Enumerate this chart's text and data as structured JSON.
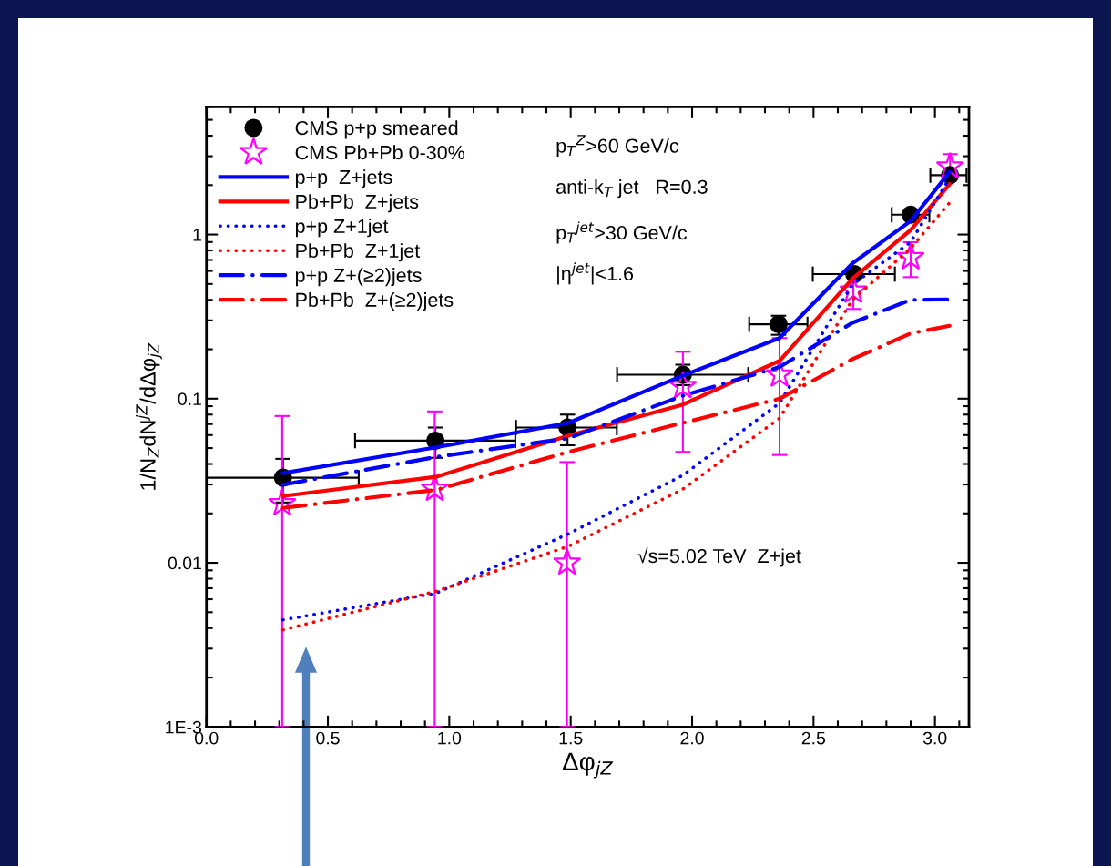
{
  "chart_data": {
    "type": "line",
    "xlabel": "Δφ$_{jZ}$",
    "ylabel": "1/N$_{Z}$dN$^{jZ}$/dΔφ$_{jZ}$",
    "log": "y",
    "xlim": [
      0,
      3.14
    ],
    "ylim": [
      0.001,
      6
    ],
    "xticks": [
      {
        "value": 0,
        "label": "0.0"
      },
      {
        "value": 0.5,
        "label": "0.5"
      },
      {
        "value": 1,
        "label": "1.0"
      },
      {
        "value": 1.5,
        "label": "1.5"
      },
      {
        "value": 2,
        "label": "2.0"
      },
      {
        "value": 2.5,
        "label": "2.5"
      },
      {
        "value": 3,
        "label": "3.0"
      }
    ],
    "yticks": [
      {
        "value": 0.001,
        "label": "1E-3"
      },
      0.01,
      0.1,
      1
    ],
    "grid": false,
    "legend": "top left",
    "annotations": [
      "p$_{T}$$^{Z}$>60 GeV/c",
      "anti-k$_{T}$ jet   R=0.3",
      "p$_{T}$$^{jet}$>30 GeV/c",
      "|η$^{jet}$|<1.6",
      "√s=5.02 TeV  Z+jet"
    ],
    "series": [
      {
        "name": "CMS p+p smeared",
        "type": "scatter",
        "marker": "circle",
        "color": "#000000",
        "x": [
          0.315,
          0.943,
          1.487,
          1.962,
          2.356,
          2.668,
          2.9,
          3.062
        ],
        "values": [
          0.033,
          0.0555,
          0.0667,
          0.14,
          0.284,
          0.574,
          1.32,
          2.3
        ],
        "errors": [
          [
            0.0233,
            0.043
          ],
          [
            0.0436,
            0.0667
          ],
          [
            0.052,
            0.08
          ],
          [
            0.121,
            0.161
          ],
          [
            0.245,
            0.32
          ],
          null,
          null,
          null
        ],
        "xerrors": [
          [
            0,
            0.627
          ],
          [
            0.612,
            1.272
          ],
          [
            1.275,
            1.69
          ],
          [
            1.691,
            2.231
          ],
          [
            2.235,
            2.475
          ],
          [
            2.497,
            2.835
          ],
          [
            2.822,
            2.977
          ],
          [
            2.981,
            3.13
          ]
        ]
      },
      {
        "name": "CMS Pb+Pb 0-30%",
        "type": "scatter",
        "marker": "star",
        "color": "#ff00ff",
        "x": [
          0.312,
          0.94,
          1.485,
          1.962,
          2.36,
          2.664,
          2.9,
          3.062
        ],
        "values": [
          0.023,
          0.0282,
          0.01,
          0.119,
          0.14,
          0.454,
          0.726,
          2.59
        ],
        "errors": [
          [
            0.001,
            0.0784
          ],
          [
            0.001,
            0.0836
          ],
          [
            0.001,
            0.0411
          ],
          [
            0.0474,
            0.193
          ],
          [
            0.0454,
            0.234
          ],
          [
            0.352,
            0.574
          ],
          [
            0.55,
            0.898
          ],
          [
            2.16,
            3.09
          ]
        ]
      },
      {
        "name": "p+p  Z+jets",
        "line_style": "solid",
        "color": "#0000ff",
        "x": [
          0.315,
          0.945,
          1.49,
          1.96,
          2.36,
          2.66,
          2.9,
          3.06
        ],
        "values": [
          0.0352,
          0.0505,
          0.0711,
          0.138,
          0.234,
          0.667,
          1.21,
          2.4
        ]
      },
      {
        "name": "Pb+Pb  Z+jets",
        "line_style": "solid",
        "color": "#ff0000",
        "x": [
          0.315,
          0.945,
          1.49,
          1.96,
          2.36,
          2.66,
          2.9,
          3.06
        ],
        "values": [
          0.0255,
          0.0334,
          0.0594,
          0.0918,
          0.17,
          0.538,
          1.066,
          2.02
        ]
      },
      {
        "name": "p+p Z+1jet",
        "line_style": "dotted",
        "color": "#0000ff",
        "x": [
          0.315,
          0.945,
          1.49,
          1.96,
          2.36,
          2.66,
          2.9,
          3.06
        ],
        "values": [
          0.00449,
          0.00652,
          0.015,
          0.034,
          0.094,
          0.495,
          0.9,
          2.2
        ]
      },
      {
        "name": "Pb+Pb  Z+1jet",
        "line_style": "dotted",
        "color": "#ff0000",
        "x": [
          0.315,
          0.945,
          1.49,
          1.96,
          2.36,
          2.66,
          2.9,
          3.06
        ],
        "values": [
          0.0039,
          0.0067,
          0.0126,
          0.028,
          0.076,
          0.4,
          0.825,
          1.56
        ]
      },
      {
        "name": "p+p Z+(≥2)jets",
        "line_style": "dashdot",
        "color": "#0000ff",
        "x": [
          0.315,
          0.945,
          1.49,
          1.96,
          2.36,
          2.66,
          2.9,
          3.06
        ],
        "values": [
          0.0299,
          0.0441,
          0.0574,
          0.104,
          0.156,
          0.29,
          0.4,
          0.403
        ]
      },
      {
        "name": "Pb+Pb  Z+(≥2)jets",
        "line_style": "dashdot",
        "color": "#ff0000",
        "x": [
          0.315,
          0.945,
          1.49,
          1.96,
          2.36,
          2.66,
          2.9,
          3.06
        ],
        "values": [
          0.0216,
          0.0278,
          0.0474,
          0.0711,
          0.1,
          0.174,
          0.25,
          0.278
        ]
      }
    ]
  }
}
